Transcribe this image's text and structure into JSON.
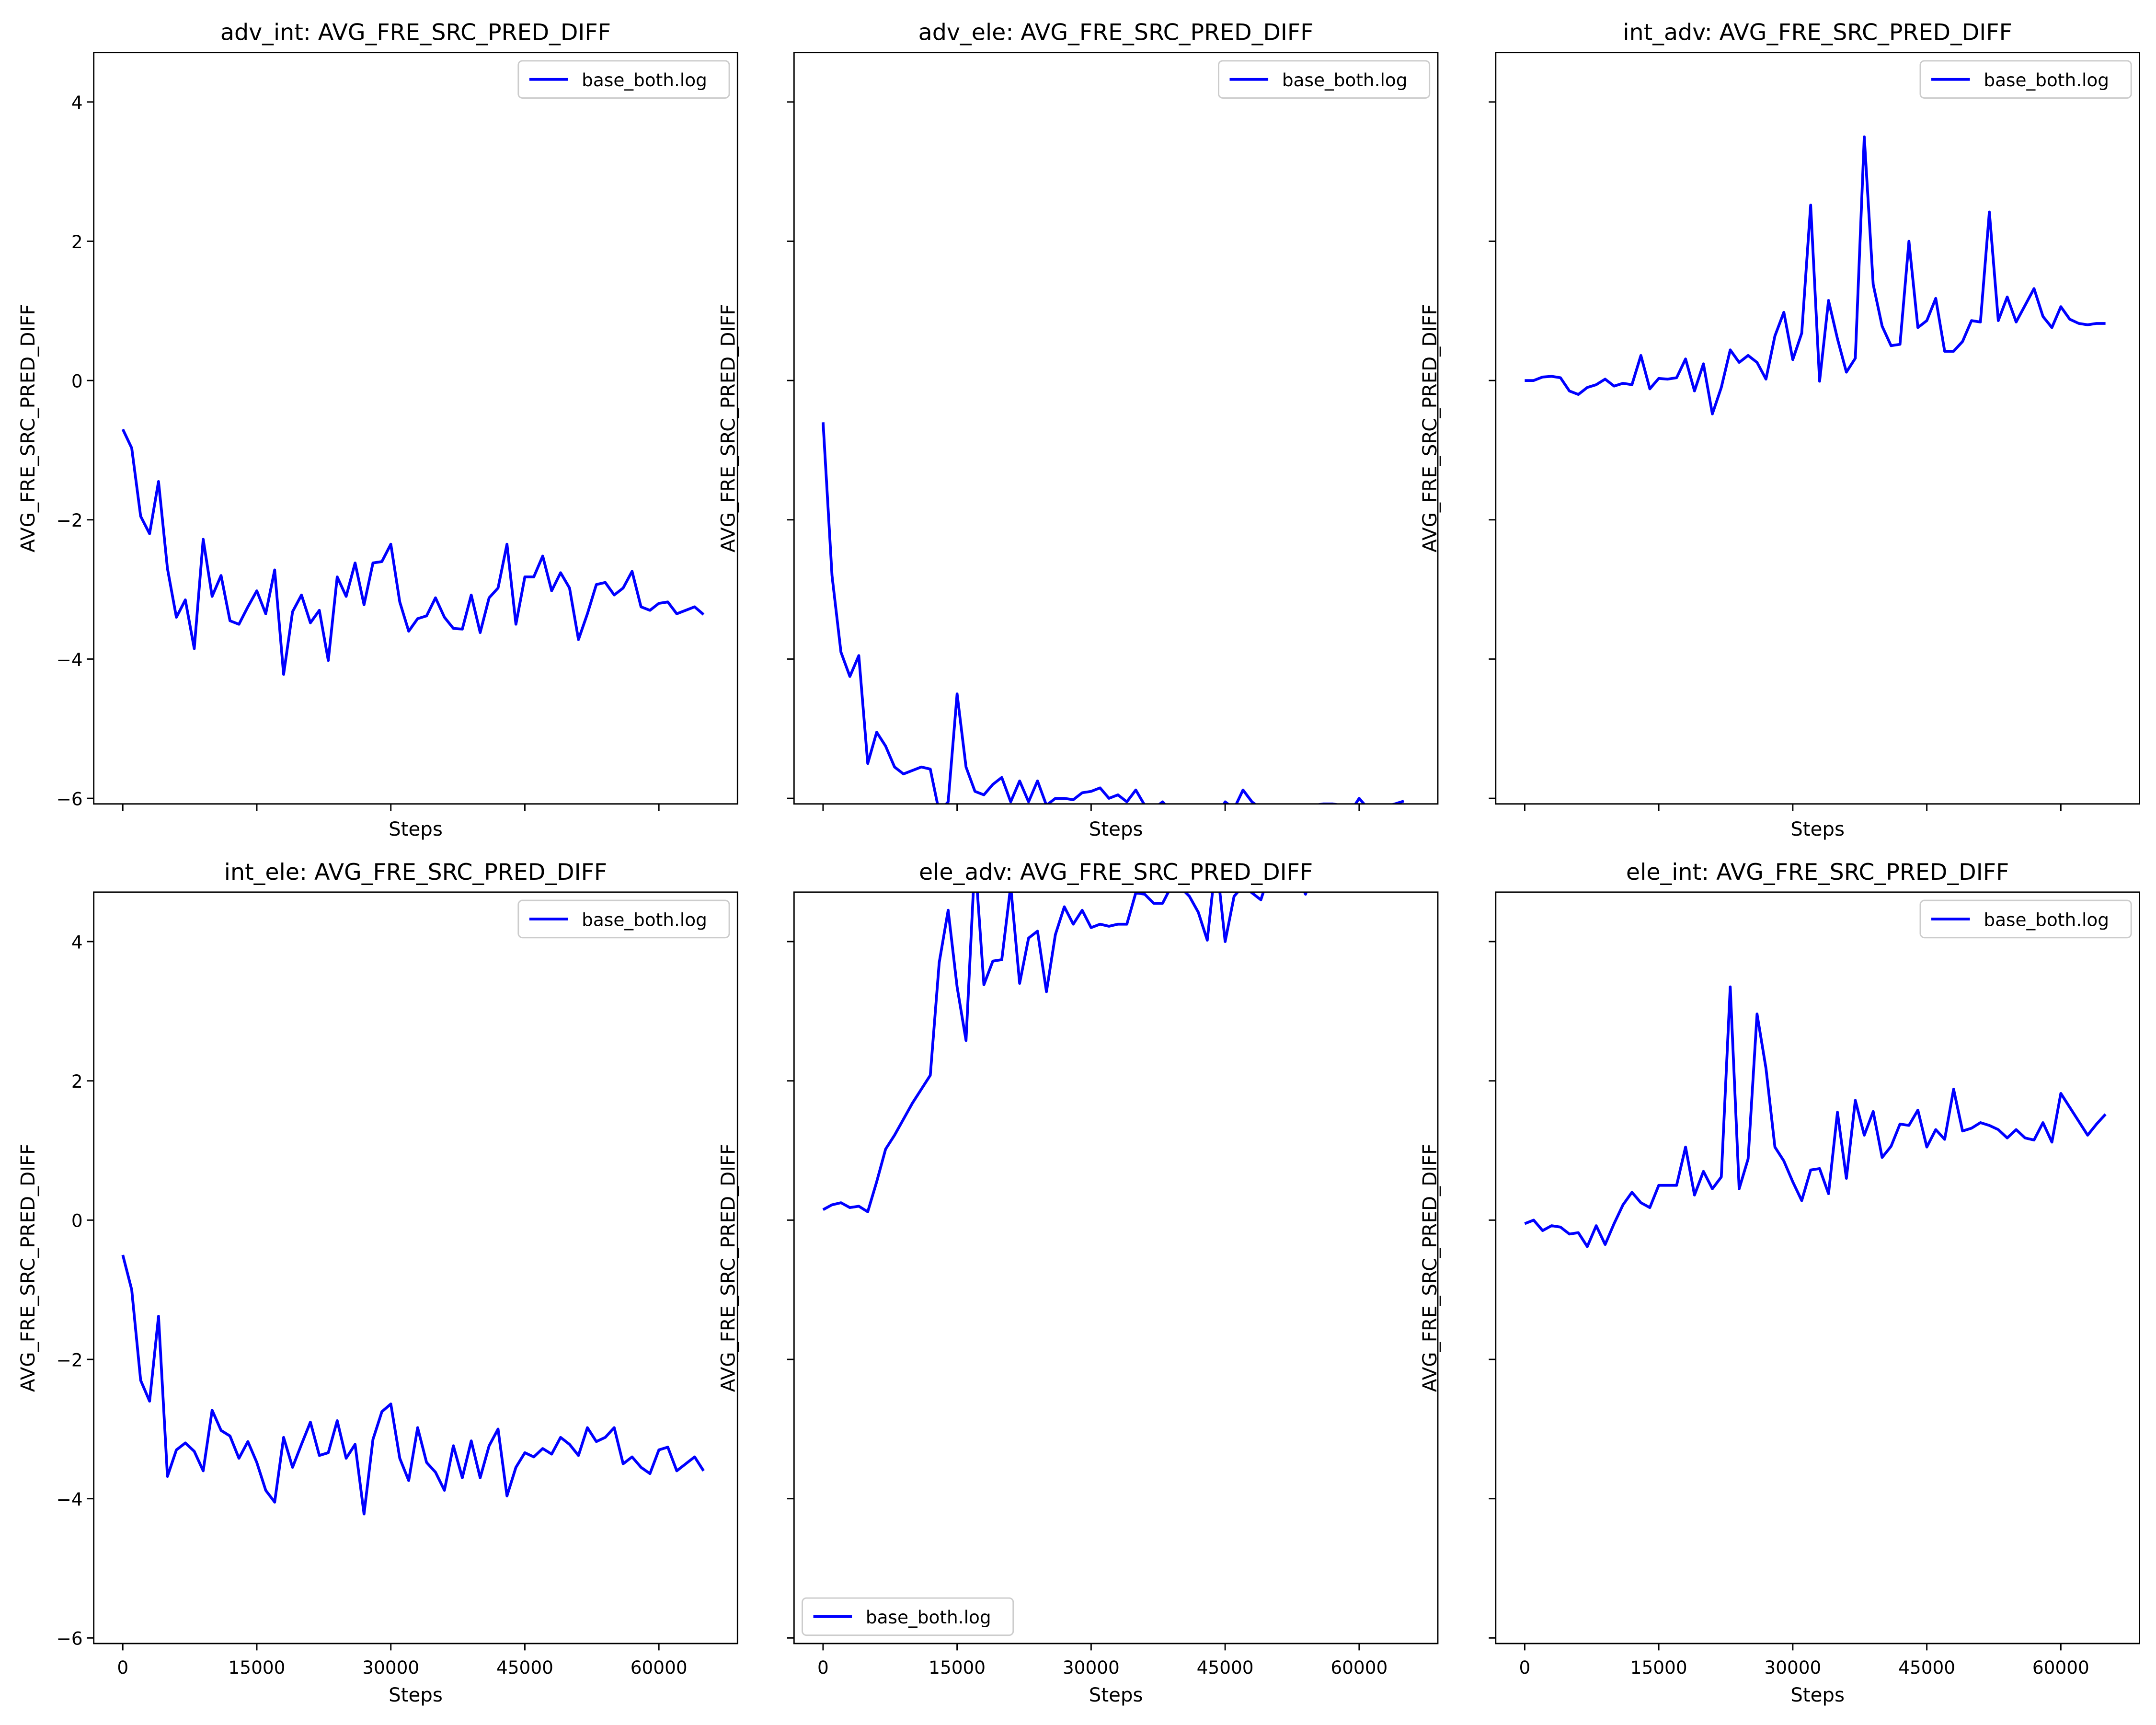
{
  "chart_data": [
    {
      "type": "line",
      "title": "adv_int: AVG_FRE_SRC_PRED_DIFF",
      "xlabel": "Steps",
      "ylabel": "AVG_FRE_SRC_PRED_DIFF",
      "x": [
        0,
        1000,
        2000,
        3000,
        4000,
        5000,
        6000,
        7000,
        8000,
        9000,
        10000,
        11000,
        12000,
        13000,
        14000,
        15000,
        16000,
        17000,
        18000,
        19000,
        20000,
        21000,
        22000,
        23000,
        24000,
        25000,
        26000,
        27000,
        28000,
        29000,
        30000,
        31000,
        32000,
        33000,
        34000,
        35000,
        36000,
        37000,
        38000,
        39000,
        40000,
        41000,
        42000,
        43000,
        44000,
        45000,
        46000,
        47000,
        48000,
        49000,
        50000,
        51000,
        52000,
        53000,
        54000,
        55000,
        56000,
        57000,
        58000,
        59000,
        60000,
        61000,
        62000,
        63000,
        64000,
        65000
      ],
      "series": [
        {
          "name": "base_both.log",
          "color": "#0000ff",
          "values": [
            -0.7,
            -0.97,
            -1.95,
            -2.2,
            -1.45,
            -2.7,
            -3.4,
            -3.15,
            -3.85,
            -2.28,
            -3.1,
            -2.8,
            -3.45,
            -3.5,
            -3.25,
            -3.02,
            -3.35,
            -2.72,
            -4.22,
            -3.32,
            -3.08,
            -3.48,
            -3.3,
            -4.02,
            -2.82,
            -3.1,
            -2.62,
            -3.22,
            -2.62,
            -2.6,
            -2.35,
            -3.18,
            -3.6,
            -3.42,
            -3.38,
            -3.12,
            -3.4,
            -3.56,
            -3.57,
            -3.08,
            -3.62,
            -3.12,
            -2.98,
            -2.35,
            -3.5,
            -2.82,
            -2.82,
            -2.52,
            -3.02,
            -2.76,
            -2.98,
            -3.72,
            -3.35,
            -2.93,
            -2.9,
            -3.08,
            -2.98,
            -2.74,
            -3.25,
            -3.3,
            -3.2,
            -3.18,
            -3.35,
            -3.3,
            -3.25,
            -3.36
          ]
        }
      ],
      "xlim": [
        -3250,
        68800
      ],
      "ylim": [
        -6.08,
        4.71
      ],
      "xticks": [
        0,
        15000,
        30000,
        45000,
        60000
      ],
      "yticks": [
        -6,
        -4,
        -2,
        0,
        2,
        4
      ],
      "xticklabels": false,
      "yticklabels": true,
      "legend": "upper right"
    },
    {
      "type": "line",
      "title": "adv_ele: AVG_FRE_SRC_PRED_DIFF",
      "xlabel": "Steps",
      "ylabel": "AVG_FRE_SRC_PRED_DIFF",
      "x": [
        0,
        1000,
        2000,
        3000,
        4000,
        5000,
        6000,
        7000,
        8000,
        9000,
        10000,
        11000,
        12000,
        13000,
        14000,
        15000,
        16000,
        17000,
        18000,
        19000,
        20000,
        21000,
        22000,
        23000,
        24000,
        25000,
        26000,
        27000,
        28000,
        29000,
        30000,
        31000,
        32000,
        33000,
        34000,
        35000,
        36000,
        37000,
        38000,
        39000,
        40000,
        41000,
        42000,
        43000,
        44000,
        45000,
        46000,
        47000,
        48000,
        49000,
        50000,
        51000,
        52000,
        53000,
        54000,
        55000,
        56000,
        57000,
        58000,
        59000,
        60000,
        61000,
        62000,
        63000,
        64000,
        65000
      ],
      "series": [
        {
          "name": "base_both.log",
          "color": "#0000ff",
          "values": [
            -0.6,
            -2.8,
            -3.9,
            -4.25,
            -3.95,
            -5.5,
            -5.05,
            -5.25,
            -5.55,
            -5.65,
            -5.6,
            -5.55,
            -5.58,
            -6.2,
            -6.05,
            -4.5,
            -5.55,
            -5.9,
            -5.95,
            -5.8,
            -5.7,
            -6.05,
            -5.75,
            -6.05,
            -5.75,
            -6.1,
            -6.0,
            -6.0,
            -6.02,
            -5.92,
            -5.9,
            -5.85,
            -6.0,
            -5.95,
            -6.05,
            -5.88,
            -6.1,
            -6.15,
            -6.05,
            -6.2,
            -6.25,
            -6.3,
            -6.2,
            -6.4,
            -6.3,
            -6.05,
            -6.15,
            -5.88,
            -6.05,
            -6.15,
            -6.1,
            -6.2,
            -6.1,
            -6.15,
            -6.2,
            -6.1,
            -6.08,
            -6.08,
            -6.1,
            -6.2,
            -6.0,
            -6.15,
            -6.1,
            -6.12,
            -6.08,
            -6.04
          ]
        }
      ],
      "xlim": [
        -3250,
        68800
      ],
      "ylim": [
        -6.08,
        4.71
      ],
      "xticks": [
        0,
        15000,
        30000,
        45000,
        60000
      ],
      "yticks": [
        -6,
        -4,
        -2,
        0,
        2,
        4
      ],
      "xticklabels": false,
      "yticklabels": false,
      "legend": "upper right"
    },
    {
      "type": "line",
      "title": "int_adv: AVG_FRE_SRC_PRED_DIFF",
      "xlabel": "Steps",
      "ylabel": "AVG_FRE_SRC_PRED_DIFF",
      "x": [
        0,
        1000,
        2000,
        3000,
        4000,
        5000,
        6000,
        7000,
        8000,
        9000,
        10000,
        11000,
        12000,
        13000,
        14000,
        15000,
        16000,
        17000,
        18000,
        19000,
        20000,
        21000,
        22000,
        23000,
        24000,
        25000,
        26000,
        27000,
        28000,
        29000,
        30000,
        31000,
        32000,
        33000,
        34000,
        35000,
        36000,
        37000,
        38000,
        39000,
        40000,
        41000,
        42000,
        43000,
        44000,
        45000,
        46000,
        47000,
        48000,
        49000,
        50000,
        51000,
        52000,
        53000,
        54000,
        55000,
        56000,
        57000,
        58000,
        59000,
        60000,
        61000,
        62000,
        63000,
        64000,
        65000
      ],
      "series": [
        {
          "name": "base_both.log",
          "color": "#0000ff",
          "values": [
            0.0,
            0.0,
            0.05,
            0.06,
            0.04,
            -0.15,
            -0.2,
            -0.1,
            -0.06,
            0.02,
            -0.08,
            -0.04,
            -0.06,
            0.36,
            -0.12,
            0.03,
            0.02,
            0.04,
            0.31,
            -0.15,
            0.24,
            -0.48,
            -0.1,
            0.44,
            0.26,
            0.36,
            0.26,
            0.02,
            0.64,
            0.98,
            0.3,
            0.68,
            2.52,
            -0.01,
            1.15,
            0.6,
            0.12,
            0.32,
            3.5,
            1.38,
            0.78,
            0.5,
            0.52,
            2.0,
            0.76,
            0.86,
            1.18,
            0.42,
            0.42,
            0.56,
            0.86,
            0.84,
            2.42,
            0.86,
            1.2,
            0.84,
            1.08,
            1.32,
            0.92,
            0.76,
            1.06,
            0.88,
            0.82,
            0.8,
            0.82,
            0.82
          ]
        }
      ],
      "xlim": [
        -3250,
        68800
      ],
      "ylim": [
        -6.08,
        4.71
      ],
      "xticks": [
        0,
        15000,
        30000,
        45000,
        60000
      ],
      "yticks": [
        -6,
        -4,
        -2,
        0,
        2,
        4
      ],
      "xticklabels": false,
      "yticklabels": false,
      "legend": "upper right"
    },
    {
      "type": "line",
      "title": "int_ele: AVG_FRE_SRC_PRED_DIFF",
      "xlabel": "Steps",
      "ylabel": "AVG_FRE_SRC_PRED_DIFF",
      "x": [
        0,
        1000,
        2000,
        3000,
        4000,
        5000,
        6000,
        7000,
        8000,
        9000,
        10000,
        11000,
        12000,
        13000,
        14000,
        15000,
        16000,
        17000,
        18000,
        19000,
        20000,
        21000,
        22000,
        23000,
        24000,
        25000,
        26000,
        27000,
        28000,
        29000,
        30000,
        31000,
        32000,
        33000,
        34000,
        35000,
        36000,
        37000,
        38000,
        39000,
        40000,
        41000,
        42000,
        43000,
        44000,
        45000,
        46000,
        47000,
        48000,
        49000,
        50000,
        51000,
        52000,
        53000,
        54000,
        55000,
        56000,
        57000,
        58000,
        59000,
        60000,
        61000,
        62000,
        63000,
        64000,
        65000
      ],
      "series": [
        {
          "name": "base_both.log",
          "color": "#0000ff",
          "values": [
            -0.5,
            -1.0,
            -2.3,
            -2.6,
            -1.38,
            -3.68,
            -3.3,
            -3.2,
            -3.32,
            -3.6,
            -2.73,
            -3.02,
            -3.1,
            -3.42,
            -3.18,
            -3.48,
            -3.88,
            -4.05,
            -3.12,
            -3.55,
            -3.22,
            -2.9,
            -3.38,
            -3.34,
            -2.88,
            -3.42,
            -3.22,
            -4.22,
            -3.15,
            -2.75,
            -2.64,
            -3.42,
            -3.74,
            -2.98,
            -3.48,
            -3.62,
            -3.88,
            -3.24,
            -3.7,
            -3.17,
            -3.7,
            -3.24,
            -3.0,
            -3.96,
            -3.55,
            -3.34,
            -3.4,
            -3.28,
            -3.36,
            -3.12,
            -3.22,
            -3.38,
            -2.98,
            -3.18,
            -3.12,
            -2.98,
            -3.5,
            -3.4,
            -3.55,
            -3.64,
            -3.3,
            -3.26,
            -3.6,
            -3.5,
            -3.4,
            -3.6
          ]
        }
      ],
      "xlim": [
        -3250,
        68800
      ],
      "ylim": [
        -6.08,
        4.71
      ],
      "xticks": [
        0,
        15000,
        30000,
        45000,
        60000
      ],
      "yticks": [
        -6,
        -4,
        -2,
        0,
        2,
        4
      ],
      "xticklabels": true,
      "yticklabels": true,
      "legend": "upper right"
    },
    {
      "type": "line",
      "title": "ele_adv: AVG_FRE_SRC_PRED_DIFF",
      "xlabel": "Steps",
      "ylabel": "AVG_FRE_SRC_PRED_DIFF",
      "x": [
        0,
        1000,
        2000,
        3000,
        4000,
        5000,
        6000,
        7000,
        8000,
        9000,
        10000,
        11000,
        12000,
        13000,
        14000,
        15000,
        16000,
        17000,
        18000,
        19000,
        20000,
        21000,
        22000,
        23000,
        24000,
        25000,
        26000,
        27000,
        28000,
        29000,
        30000,
        31000,
        32000,
        33000,
        34000,
        35000,
        36000,
        37000,
        38000,
        39000,
        40000,
        41000,
        42000,
        43000,
        44000,
        45000,
        46000,
        47000,
        48000,
        49000,
        50000,
        51000,
        52000,
        53000,
        54000,
        55000,
        56000,
        57000,
        58000,
        59000,
        60000,
        61000,
        62000,
        63000,
        64000,
        65000
      ],
      "series": [
        {
          "name": "base_both.log",
          "color": "#0000ff",
          "values": [
            0.15,
            0.22,
            0.25,
            0.18,
            0.2,
            0.12,
            0.55,
            1.02,
            1.22,
            1.45,
            1.68,
            1.88,
            2.08,
            3.7,
            4.45,
            3.35,
            2.58,
            5.2,
            3.38,
            3.72,
            3.74,
            4.8,
            3.4,
            4.05,
            4.15,
            3.28,
            4.1,
            4.5,
            4.25,
            4.45,
            4.2,
            4.25,
            4.22,
            4.25,
            4.25,
            4.7,
            4.68,
            4.55,
            4.55,
            4.8,
            4.78,
            4.65,
            4.42,
            4.02,
            5.2,
            4.0,
            4.65,
            4.8,
            4.7,
            4.6,
            5.0,
            5.1,
            5.05,
            4.95,
            4.68,
            5.1,
            5.2,
            5.1,
            5.3,
            5.0,
            5.2,
            5.3,
            5.1,
            5.2,
            5.15,
            5.2
          ]
        }
      ],
      "xlim": [
        -3250,
        68800
      ],
      "ylim": [
        -6.08,
        4.71
      ],
      "xticks": [
        0,
        15000,
        30000,
        45000,
        60000
      ],
      "yticks": [
        -6,
        -4,
        -2,
        0,
        2,
        4
      ],
      "xticklabels": true,
      "yticklabels": false,
      "legend": "lower left"
    },
    {
      "type": "line",
      "title": "ele_int: AVG_FRE_SRC_PRED_DIFF",
      "xlabel": "Steps",
      "ylabel": "AVG_FRE_SRC_PRED_DIFF",
      "x": [
        0,
        1000,
        2000,
        3000,
        4000,
        5000,
        6000,
        7000,
        8000,
        9000,
        10000,
        11000,
        12000,
        13000,
        14000,
        15000,
        16000,
        17000,
        18000,
        19000,
        20000,
        21000,
        22000,
        23000,
        24000,
        25000,
        26000,
        27000,
        28000,
        29000,
        30000,
        31000,
        32000,
        33000,
        34000,
        35000,
        36000,
        37000,
        38000,
        39000,
        40000,
        41000,
        42000,
        43000,
        44000,
        45000,
        46000,
        47000,
        48000,
        49000,
        50000,
        51000,
        52000,
        53000,
        54000,
        55000,
        56000,
        57000,
        58000,
        59000,
        60000,
        61000,
        62000,
        63000,
        64000,
        65000
      ],
      "series": [
        {
          "name": "base_both.log",
          "color": "#0000ff",
          "values": [
            -0.05,
            0.0,
            -0.15,
            -0.08,
            -0.1,
            -0.2,
            -0.18,
            -0.38,
            -0.08,
            -0.35,
            -0.05,
            0.22,
            0.4,
            0.25,
            0.18,
            0.5,
            0.5,
            0.5,
            1.05,
            0.36,
            0.7,
            0.45,
            0.62,
            3.35,
            0.45,
            0.88,
            2.96,
            2.18,
            1.05,
            0.85,
            0.55,
            0.28,
            0.72,
            0.74,
            0.38,
            1.55,
            0.6,
            1.72,
            1.22,
            1.56,
            0.9,
            1.06,
            1.38,
            1.36,
            1.58,
            1.05,
            1.3,
            1.16,
            1.88,
            1.28,
            1.32,
            1.4,
            1.36,
            1.3,
            1.18,
            1.3,
            1.18,
            1.15,
            1.4,
            1.12,
            1.82,
            1.62,
            1.42,
            1.22,
            1.38,
            1.52
          ]
        }
      ],
      "xlim": [
        -3250,
        68800
      ],
      "ylim": [
        -6.08,
        4.71
      ],
      "xticks": [
        0,
        15000,
        30000,
        45000,
        60000
      ],
      "yticks": [
        -6,
        -4,
        -2,
        0,
        2,
        4
      ],
      "xticklabels": true,
      "yticklabels": false,
      "legend": "upper right"
    }
  ]
}
